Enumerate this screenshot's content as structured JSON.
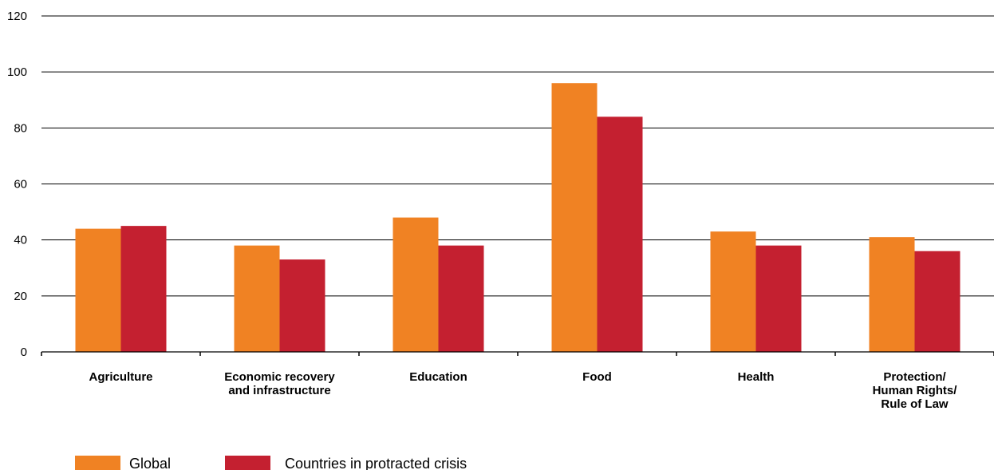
{
  "chart_data": {
    "type": "bar",
    "categories": [
      [
        "Agriculture"
      ],
      [
        "Economic recovery",
        "and infrastructure"
      ],
      [
        "Education"
      ],
      [
        "Food"
      ],
      [
        "Health"
      ],
      [
        "Protection/",
        "Human Rights/",
        "Rule of Law"
      ]
    ],
    "series": [
      {
        "name": "Global",
        "color": "#f08223",
        "values": [
          44,
          38,
          48,
          96,
          43,
          41
        ]
      },
      {
        "name": "Countries in protracted crisis",
        "color": "#c42030",
        "values": [
          45,
          33,
          38,
          84,
          38,
          36
        ]
      }
    ],
    "ylim": [
      0,
      120
    ],
    "yticks": [
      0,
      20,
      40,
      60,
      80,
      100,
      120
    ],
    "grid": true,
    "legend": "bottom-left"
  }
}
